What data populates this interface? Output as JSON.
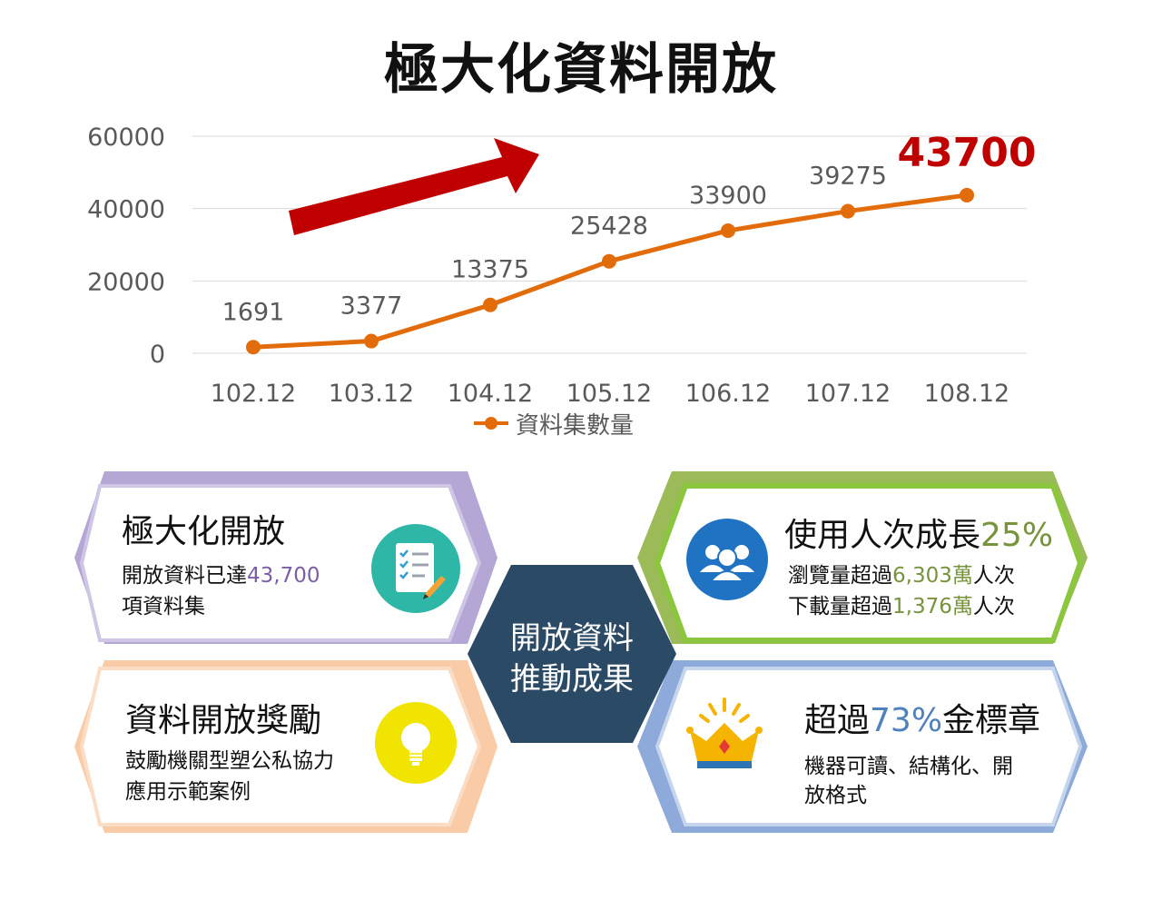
{
  "title": "極大化資料開放",
  "chart_data": {
    "type": "line",
    "x": [
      "102.12",
      "103.12",
      "104.12",
      "105.12",
      "106.12",
      "107.12",
      "108.12"
    ],
    "series": [
      {
        "name": "資料集數量",
        "values": [
          1691,
          3377,
          13375,
          25428,
          33900,
          39275,
          43700
        ]
      }
    ],
    "data_labels": [
      "1691",
      "3377",
      "13375",
      "25428",
      "33900",
      "39275",
      "43700"
    ],
    "yticks": [
      "0",
      "20000",
      "40000",
      "60000"
    ],
    "ylim": [
      0,
      60000
    ],
    "grid": true,
    "legend": "bottom",
    "line_color": "#E36C0A",
    "highlight_color": "#C00000",
    "trend_arrow_color": "#C00000"
  },
  "cards": {
    "open": {
      "title": "極大化開放",
      "line1_prefix": "開放資料已達",
      "line1_value": "43,700",
      "line2": "項資料集",
      "accent": "#7B5EA7",
      "icon": "checklist-icon"
    },
    "users": {
      "title_prefix": "使用人次成長",
      "title_value": "25%",
      "line1_prefix": "瀏覽量超過",
      "line1_value": "6,303萬",
      "line1_suffix": "人次",
      "line2_prefix": "下載量超過",
      "line2_value": "1,376萬",
      "line2_suffix": "人次",
      "accent": "#77933C",
      "icon": "users-icon"
    },
    "award": {
      "title": "資料開放獎勵",
      "line1": "鼓勵機關型塑公私協力",
      "line2": "應用示範案例",
      "icon": "lightbulb-icon"
    },
    "gold": {
      "title_prefix": "超過",
      "title_value": "73%",
      "title_suffix": "金標章",
      "line1": "機器可讀、結構化、開",
      "line2": "放格式",
      "accent": "#4F81BD",
      "icon": "crown-icon"
    }
  },
  "hub": {
    "line1": "開放資料",
    "line2": "推動成果"
  }
}
